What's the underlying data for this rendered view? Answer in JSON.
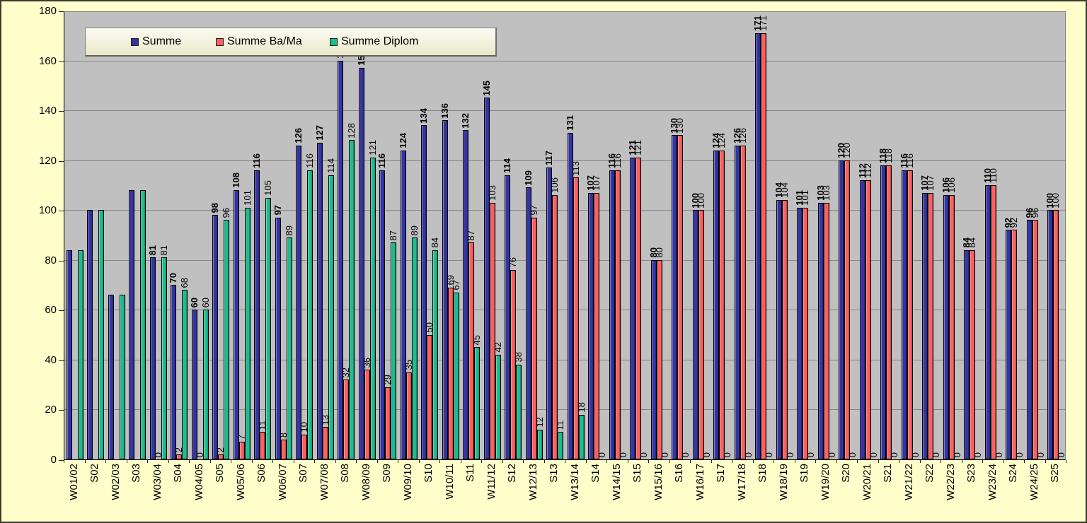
{
  "chart_data": {
    "type": "bar",
    "title": "",
    "xlabel": "",
    "ylabel": "",
    "ylim": [
      0,
      180
    ],
    "ytick_step": 20,
    "grid": true,
    "legend_position": "top-left",
    "plot_bg_color": "#C0C0C0",
    "canvas_bg_color": "#FFFFCC",
    "gridline_color": "#858585",
    "labels_start_index": 4,
    "categories": [
      "W01/02",
      "S02",
      "W02/03",
      "S03",
      "W03/04",
      "S04",
      "W04/05",
      "S05",
      "W05/06",
      "S06",
      "W06/07",
      "S07",
      "W07/08",
      "S08",
      "W08/09",
      "S09",
      "W09/10",
      "S10",
      "W10/11",
      "S11",
      "W11/12",
      "S12",
      "W12/13",
      "S13",
      "W13/14",
      "S14",
      "W14/15",
      "S15",
      "W15/16",
      "S16",
      "W16/17",
      "S17",
      "W17/18",
      "S18",
      "W18/19",
      "S19",
      "W19/20",
      "S20",
      "W20/21",
      "S21",
      "W21/22",
      "S22",
      "W22/23",
      "S23",
      "W23/24",
      "S24",
      "W24/25",
      "S25"
    ],
    "series": [
      {
        "name": "Summe",
        "color": "#3434A4",
        "bold_labels": true,
        "values": [
          84,
          100,
          66,
          108,
          81,
          70,
          60,
          98,
          108,
          116,
          97,
          126,
          127,
          160,
          157,
          116,
          124,
          134,
          136,
          132,
          145,
          114,
          109,
          117,
          131,
          107,
          116,
          121,
          80,
          130,
          100,
          124,
          126,
          171,
          104,
          101,
          103,
          120,
          112,
          118,
          116,
          107,
          106,
          84,
          110,
          92,
          96,
          100
        ]
      },
      {
        "name": "Summe Ba/Ma",
        "color": "#FF5F5F",
        "bold_labels": false,
        "values": [
          null,
          null,
          null,
          null,
          0,
          2,
          0,
          2,
          7,
          11,
          8,
          10,
          13,
          32,
          36,
          29,
          35,
          50,
          69,
          87,
          103,
          76,
          97,
          106,
          113,
          107,
          116,
          121,
          80,
          130,
          100,
          124,
          126,
          171,
          104,
          101,
          103,
          120,
          112,
          118,
          116,
          107,
          106,
          84,
          110,
          92,
          96,
          100
        ]
      },
      {
        "name": "Summe Diplom",
        "color": "#1ABD8F",
        "bold_labels": false,
        "values": [
          84,
          100,
          66,
          108,
          81,
          68,
          60,
          96,
          101,
          105,
          89,
          116,
          114,
          128,
          121,
          87,
          89,
          84,
          67,
          45,
          42,
          38,
          12,
          11,
          18,
          0,
          0,
          0,
          0,
          0,
          0,
          0,
          0,
          0,
          0,
          0,
          0,
          0,
          0,
          0,
          0,
          0,
          0,
          0,
          0,
          0,
          0,
          0
        ]
      }
    ]
  },
  "y_axis": {
    "tick_labels": [
      "0",
      "20",
      "40",
      "60",
      "80",
      "100",
      "120",
      "140",
      "160",
      "180"
    ]
  }
}
